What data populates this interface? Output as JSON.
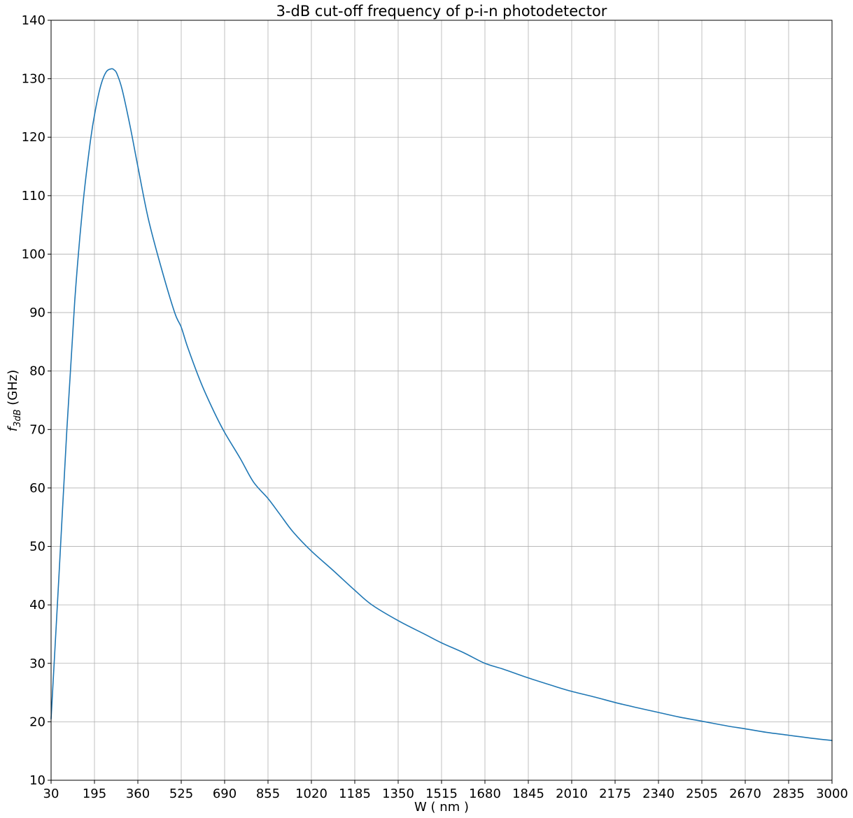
{
  "chart_data": {
    "type": "line",
    "title": "3-dB cut-off frequency of p-i-n photodetector",
    "xlabel": "W ( nm )",
    "ylabel": {
      "main": "f",
      "sub": "3dB",
      "unit": " (GHz)"
    },
    "xlim": [
      30,
      3000
    ],
    "ylim": [
      10,
      140
    ],
    "xticks": [
      30,
      195,
      360,
      525,
      690,
      855,
      1020,
      1185,
      1350,
      1515,
      1680,
      1845,
      2010,
      2175,
      2340,
      2505,
      2670,
      2835,
      3000
    ],
    "yticks": [
      10,
      20,
      30,
      40,
      50,
      60,
      70,
      80,
      90,
      100,
      110,
      120,
      130,
      140
    ],
    "grid": true,
    "series": [
      {
        "color": "#1f77b4",
        "x": [
          30,
          60,
          90,
          120,
          150,
          180,
          200,
          220,
          240,
          260,
          270,
          280,
          300,
          330,
          360,
          400,
          450,
          500,
          525,
          550,
          600,
          650,
          690,
          750,
          800,
          855,
          900,
          950,
          1020,
          1100,
          1185,
          1250,
          1350,
          1450,
          1515,
          1600,
          1680,
          1750,
          1845,
          1950,
          2010,
          2100,
          2175,
          2250,
          2340,
          2420,
          2505,
          2600,
          2670,
          2750,
          2835,
          2920,
          3000
        ],
        "y": [
          20.5,
          45,
          70,
          92,
          108,
          119.5,
          125,
          129,
          131.2,
          131.7,
          131.5,
          130.9,
          128.2,
          122,
          115,
          106,
          97.5,
          90,
          87.5,
          84,
          78,
          73,
          69.5,
          65,
          61,
          58.2,
          55.5,
          52.5,
          49.2,
          46,
          42.5,
          40,
          37.3,
          35,
          33.5,
          31.8,
          30,
          29,
          27.5,
          26,
          25.2,
          24.2,
          23.3,
          22.5,
          21.6,
          20.8,
          20.1,
          19.3,
          18.8,
          18.2,
          17.7,
          17.2,
          16.8
        ]
      }
    ]
  }
}
